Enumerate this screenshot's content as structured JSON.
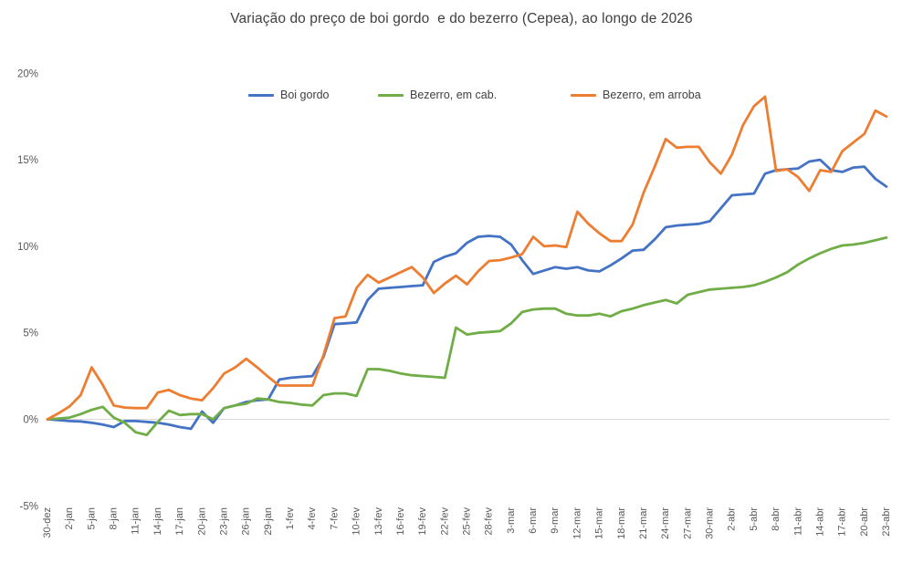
{
  "title": "Variação do preço de boi gordo  e do bezerro (Cepea), ao longo de 2026",
  "chart_data": {
    "type": "line",
    "title": "Variação do preço de boi gordo  e do bezerro (Cepea), ao longo de 2026",
    "unit": "%",
    "ylim": [
      -5,
      20
    ],
    "y_tick_labels": [
      "20%",
      "15%",
      "10%",
      "5%",
      "0%",
      "-5%"
    ],
    "y_tick_values": [
      20,
      15,
      10,
      5,
      0,
      -5
    ],
    "grid": "zero-line-only",
    "zero_line_color": "#d9d9d9",
    "legend_position": "top",
    "x_tick_labels": [
      "30-dez",
      "2-jan",
      "5-jan",
      "8-jan",
      "11-jan",
      "14-jan",
      "17-jan",
      "20-jan",
      "23-jan",
      "26-jan",
      "29-jan",
      "1-fev",
      "4-fev",
      "7-fev",
      "10-fev",
      "13-fev",
      "16-fev",
      "19-fev",
      "22-fev",
      "25-fev",
      "28-fev",
      "3-mar",
      "6-mar",
      "9-mar",
      "12-mar",
      "15-mar",
      "18-mar",
      "21-mar",
      "24-mar",
      "27-mar",
      "30-mar",
      "2-abr",
      "5-abr",
      "8-abr",
      "11-abr",
      "14-abr",
      "17-abr",
      "20-abr",
      "23-abr"
    ],
    "points_per_tick_interval": 2,
    "series": [
      {
        "name": "Boi gordo",
        "color": "#4472C4",
        "values": [
          0,
          -0.05,
          -0.1,
          -0.12,
          -0.2,
          -0.3,
          -0.45,
          -0.1,
          -0.1,
          -0.15,
          -0.2,
          -0.3,
          -0.45,
          -0.55,
          0.45,
          -0.2,
          0.65,
          0.8,
          1,
          1.1,
          1.15,
          2.3,
          2.4,
          2.45,
          2.5,
          3.6,
          5.5,
          5.55,
          5.6,
          6.9,
          7.55,
          7.6,
          7.65,
          7.7,
          7.75,
          9.1,
          9.4,
          9.6,
          10.2,
          10.55,
          10.6,
          10.55,
          10.1,
          9.2,
          8.4,
          8.6,
          8.8,
          8.7,
          8.8,
          8.6,
          8.55,
          8.9,
          9.3,
          9.75,
          9.8,
          10.4,
          11.1,
          11.2,
          11.25,
          11.3,
          11.45,
          12.2,
          12.95,
          13,
          13.05,
          14.2,
          14.4,
          14.45,
          14.5,
          14.9,
          15,
          14.4,
          14.3,
          14.55,
          14.6,
          13.9,
          13.45
        ]
      },
      {
        "name": "Bezerro, em cab.",
        "color": "#70AD47",
        "values": [
          0,
          0.05,
          0.1,
          0.3,
          0.55,
          0.72,
          0.1,
          -0.2,
          -0.75,
          -0.9,
          -0.15,
          0.5,
          0.25,
          0.3,
          0.3,
          0,
          0.65,
          0.8,
          0.9,
          1.2,
          1.15,
          1,
          0.95,
          0.85,
          0.8,
          1.4,
          1.5,
          1.5,
          1.35,
          2.9,
          2.9,
          2.8,
          2.65,
          2.55,
          2.5,
          2.45,
          2.4,
          5.3,
          4.9,
          5,
          5.05,
          5.1,
          5.55,
          6.2,
          6.35,
          6.4,
          6.4,
          6.1,
          6,
          6,
          6.1,
          5.95,
          6.25,
          6.4,
          6.6,
          6.75,
          6.9,
          6.7,
          7.2,
          7.35,
          7.5,
          7.55,
          7.6,
          7.65,
          7.75,
          7.95,
          8.2,
          8.5,
          8.95,
          9.3,
          9.6,
          9.85,
          10.05,
          10.1,
          10.2,
          10.35,
          10.5
        ]
      },
      {
        "name": "Bezerro, em arroba",
        "color": "#ED7D31",
        "values": [
          0,
          0.35,
          0.75,
          1.4,
          3,
          2,
          0.8,
          0.68,
          0.65,
          0.65,
          1.55,
          1.7,
          1.4,
          1.2,
          1.1,
          1.8,
          2.65,
          3,
          3.5,
          3,
          2.45,
          1.95,
          1.95,
          1.95,
          1.95,
          3.7,
          5.85,
          5.95,
          7.6,
          8.35,
          7.9,
          8.2,
          8.5,
          8.8,
          8.2,
          7.3,
          7.85,
          8.3,
          7.8,
          8.55,
          9.15,
          9.2,
          9.35,
          9.55,
          10.55,
          10,
          10.05,
          9.95,
          12,
          11.3,
          10.75,
          10.3,
          10.3,
          11.25,
          13.1,
          14.6,
          16.2,
          15.7,
          15.75,
          15.75,
          14.85,
          14.2,
          15.3,
          17,
          18.1,
          18.65,
          14.35,
          14.45,
          14,
          13.2,
          14.4,
          14.3,
          15.5,
          16,
          16.5,
          17.85,
          17.5
        ]
      }
    ]
  }
}
